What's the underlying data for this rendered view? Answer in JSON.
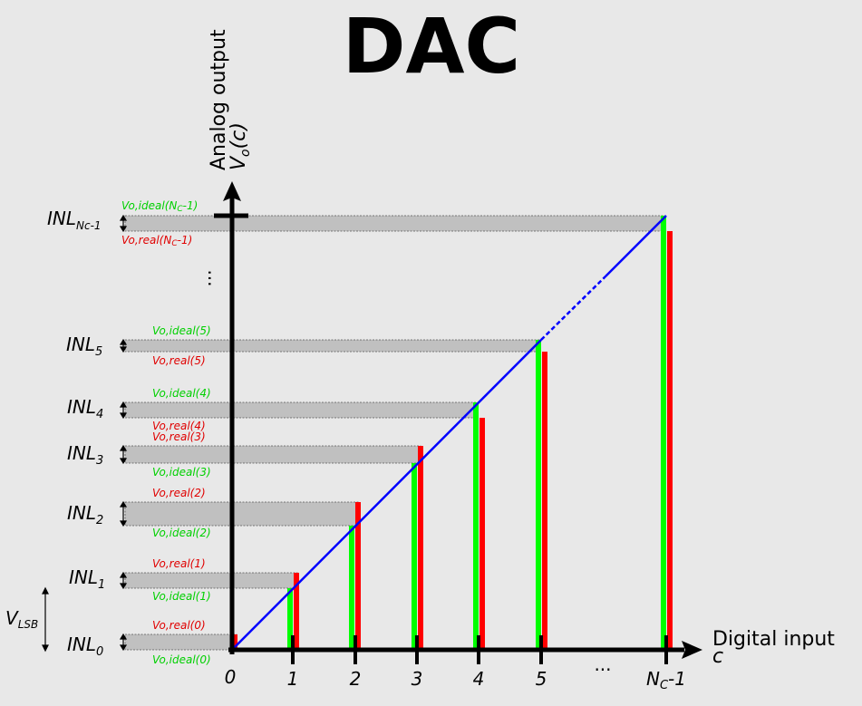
{
  "title": "DAC",
  "y_axis": {
    "label": "Analog output",
    "symbol_main": "V",
    "symbol_sub": "o",
    "symbol_arg": "(c)"
  },
  "x_axis": {
    "label": "Digital input",
    "symbol": "c"
  },
  "x_ticks": [
    {
      "main": "0",
      "sub": "",
      "tail": ""
    },
    {
      "main": "1",
      "sub": "",
      "tail": ""
    },
    {
      "main": "2",
      "sub": "",
      "tail": ""
    },
    {
      "main": "3",
      "sub": "",
      "tail": ""
    },
    {
      "main": "4",
      "sub": "",
      "tail": ""
    },
    {
      "main": "5",
      "sub": "",
      "tail": ""
    },
    {
      "main": "N",
      "sub": "C",
      "tail": "-1"
    }
  ],
  "x_ellipsis": "...",
  "y_ellipsis": "...",
  "vlsb": {
    "main": "V",
    "sub": "LSB"
  },
  "inl": [
    {
      "main": "INL",
      "sub": "0",
      "ideal": "Vo,ideal(0)",
      "real": "Vo,real(0)"
    },
    {
      "main": "INL",
      "sub": "1",
      "ideal": "Vo,ideal(1)",
      "real": "Vo,real(1)"
    },
    {
      "main": "INL",
      "sub": "2",
      "ideal": "Vo,ideal(2)",
      "real": "Vo,real(2)"
    },
    {
      "main": "INL",
      "sub": "3",
      "ideal": "Vo,ideal(3)",
      "real": "Vo,real(3)"
    },
    {
      "main": "INL",
      "sub": "4",
      "ideal": "Vo,ideal(4)",
      "real": "Vo,real(4)"
    },
    {
      "main": "INL",
      "sub": "5",
      "ideal": "Vo,ideal(5)",
      "real": "Vo,real(5)"
    },
    {
      "main": "INL",
      "sub": "Nc-1",
      "ideal_a": "Vo,ideal",
      "ideal_b": "(N",
      "ideal_c": "C",
      "ideal_d": "-1)",
      "real_a": "Vo,real",
      "real_b": "(N",
      "real_c": "C",
      "real_d": "-1)"
    }
  ],
  "colors": {
    "ideal": "#00ff00",
    "real": "#ff0000",
    "transfer_line": "#0000ff",
    "band": "#c0c0c0",
    "axis": "#000000"
  }
}
